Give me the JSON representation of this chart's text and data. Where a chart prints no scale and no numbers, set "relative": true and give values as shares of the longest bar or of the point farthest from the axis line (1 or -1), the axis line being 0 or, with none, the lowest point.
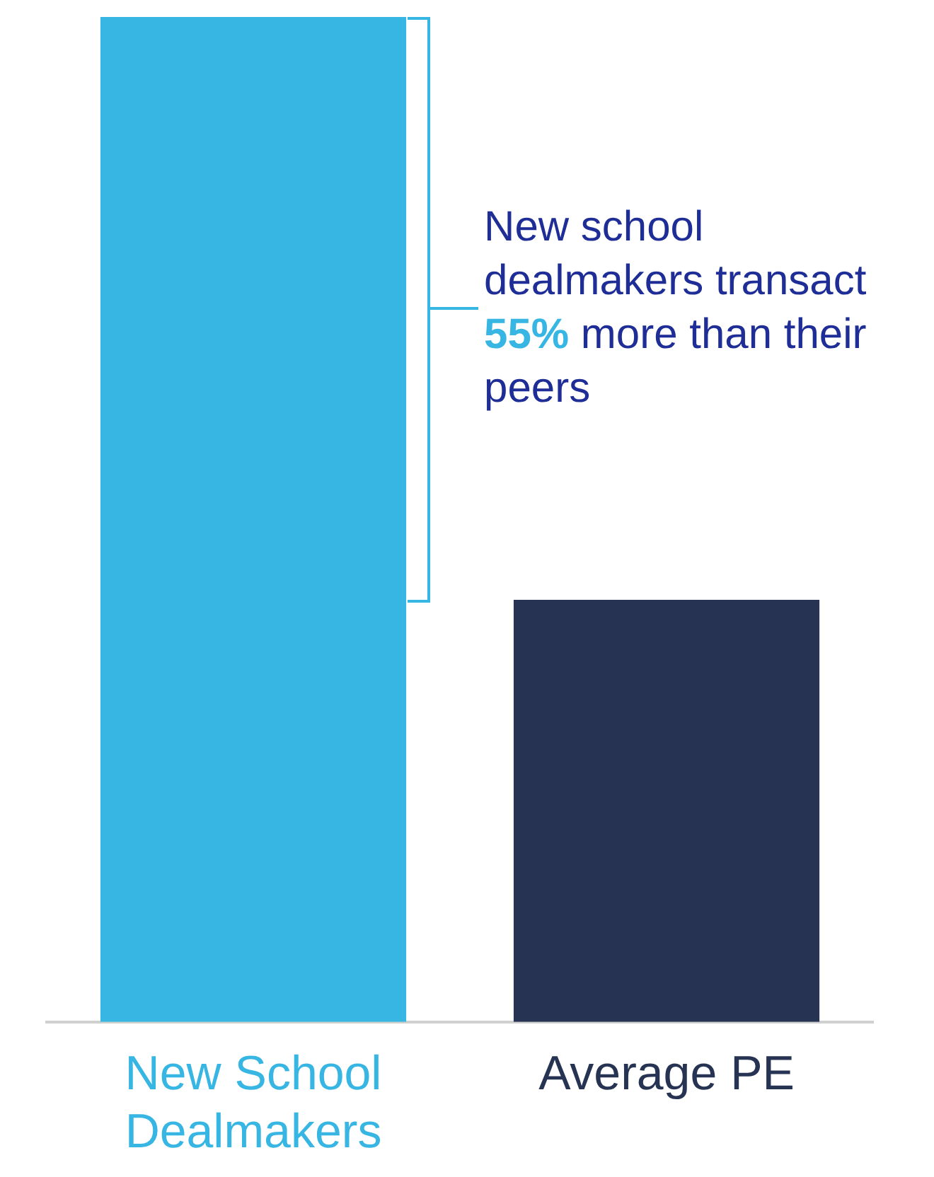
{
  "chart_data": {
    "type": "bar",
    "relative": true,
    "categories": [
      "New School Dealmakers",
      "Average PE"
    ],
    "values": [
      1,
      0.42
    ],
    "colors": [
      "#38b6e3",
      "#263352"
    ],
    "annotations": [
      "New school dealmakers transact 55% more than their peers"
    ],
    "grid": false
  }
}
